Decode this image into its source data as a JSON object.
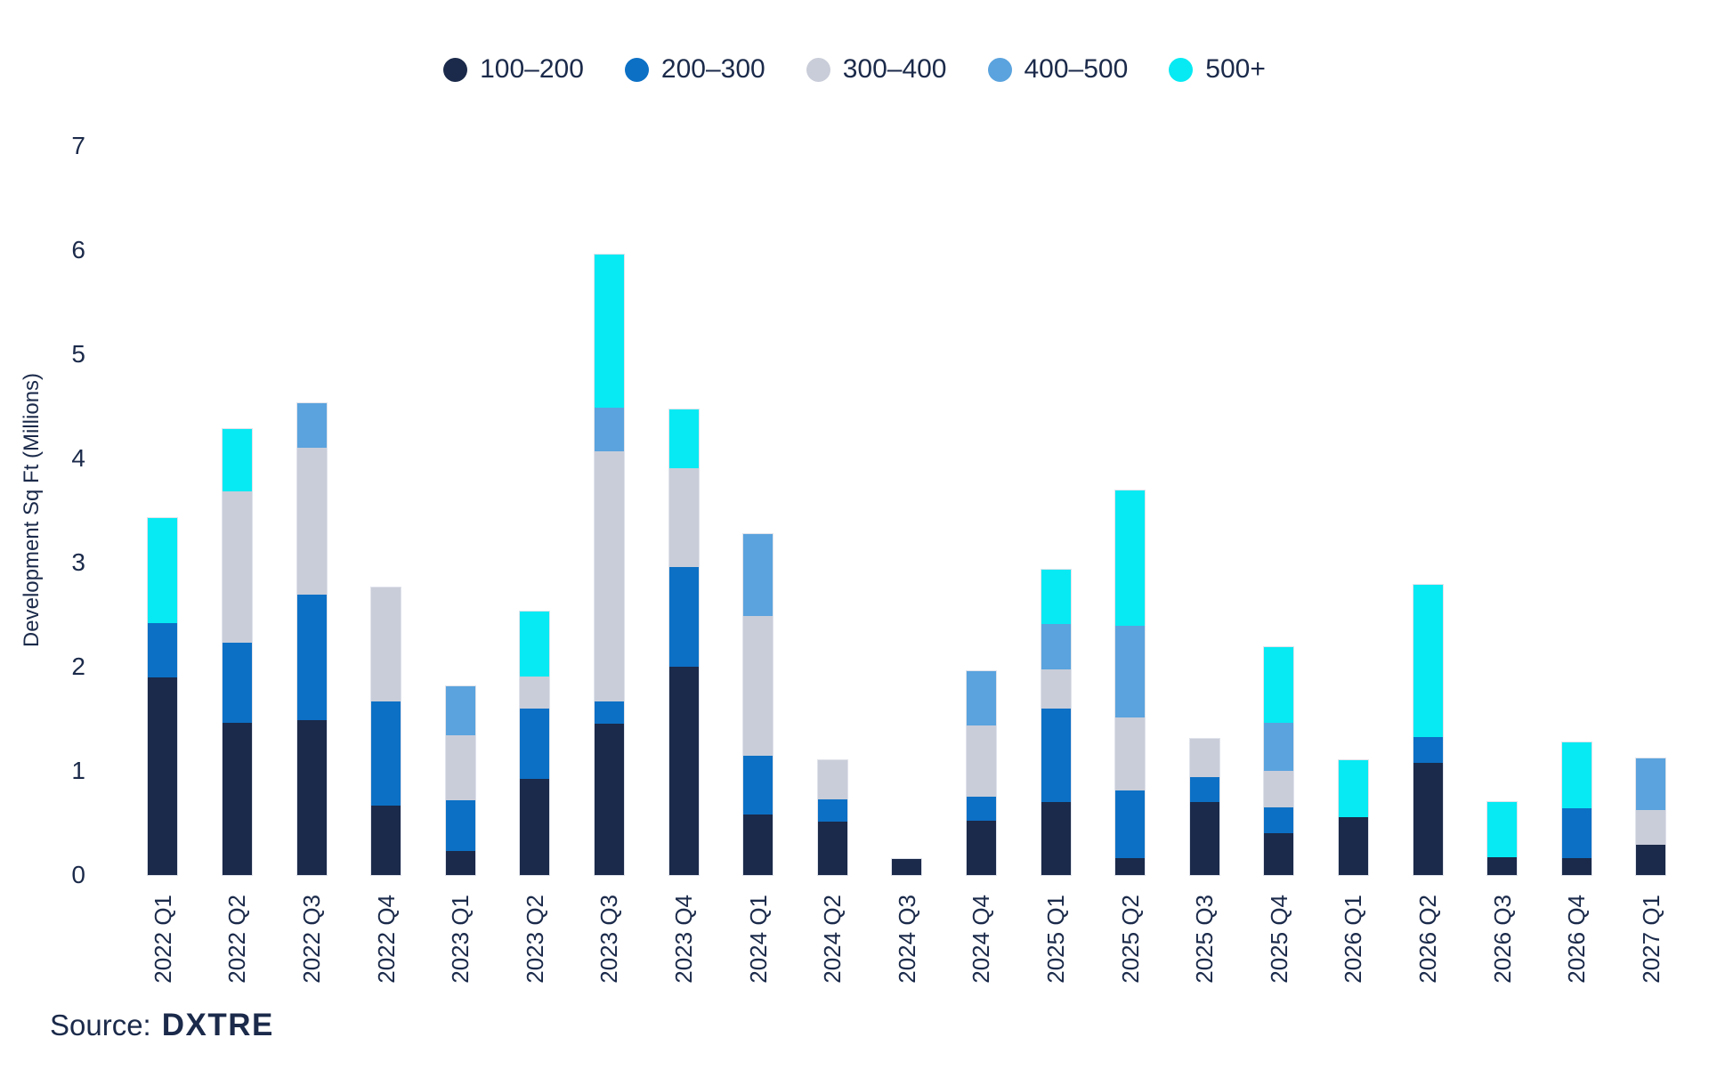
{
  "chart_data": {
    "type": "bar",
    "stacked": true,
    "title": "",
    "xlabel": "",
    "ylabel": "Development Sq Ft (Millions)",
    "ylim": [
      0,
      7
    ],
    "yticks": [
      0,
      1,
      2,
      3,
      4,
      5,
      6,
      7
    ],
    "grid": false,
    "legend_position": "top",
    "categories": [
      "2022 Q1",
      "2022 Q2",
      "2022 Q3",
      "2022 Q4",
      "2023 Q1",
      "2023 Q2",
      "2023 Q3",
      "2023 Q4",
      "2024 Q1",
      "2024 Q2",
      "2024 Q3",
      "2024 Q4",
      "2025 Q1",
      "2025 Q2",
      "2025 Q3",
      "2025 Q4",
      "2026 Q1",
      "2026 Q2",
      "2026 Q3",
      "2026 Q4",
      "2027 Q1"
    ],
    "series": [
      {
        "name": "100–200",
        "color": "#1b2a4a",
        "values": [
          1.9,
          1.46,
          1.49,
          0.67,
          0.23,
          0.92,
          1.45,
          2.0,
          0.58,
          0.51,
          0.15,
          0.52,
          0.7,
          0.16,
          0.7,
          0.4,
          0.55,
          1.08,
          0.17,
          0.16,
          0.29
        ]
      },
      {
        "name": "200–300",
        "color": "#0c70c5",
        "values": [
          0.52,
          0.77,
          1.2,
          1.0,
          0.49,
          0.68,
          0.22,
          0.96,
          0.56,
          0.21,
          0,
          0.23,
          0.9,
          0.65,
          0.24,
          0.25,
          0,
          0.25,
          0,
          0.48,
          0
        ]
      },
      {
        "name": "300–400",
        "color": "#c9cdd9",
        "values": [
          0,
          1.45,
          1.41,
          1.09,
          0.62,
          0.31,
          2.4,
          0.95,
          1.34,
          0.38,
          0,
          0.69,
          0.37,
          0.7,
          0.37,
          0.35,
          0,
          0,
          0,
          0,
          0.33
        ]
      },
      {
        "name": "400–500",
        "color": "#5aa3de",
        "values": [
          0,
          0,
          0.43,
          0,
          0.47,
          0,
          0.42,
          0,
          0.79,
          0,
          0,
          0.52,
          0.44,
          0.88,
          0,
          0.46,
          0,
          0,
          0,
          0,
          0.5
        ]
      },
      {
        "name": "500+",
        "color": "#07eaf3",
        "values": [
          1.01,
          0.6,
          0,
          0,
          0,
          0.62,
          1.47,
          0.56,
          0,
          0,
          0,
          0,
          0.52,
          1.3,
          0,
          0.73,
          0.55,
          1.46,
          0.53,
          0.63,
          0
        ]
      }
    ]
  },
  "source": {
    "prefix": "Source:",
    "name": "DXTRE"
  }
}
